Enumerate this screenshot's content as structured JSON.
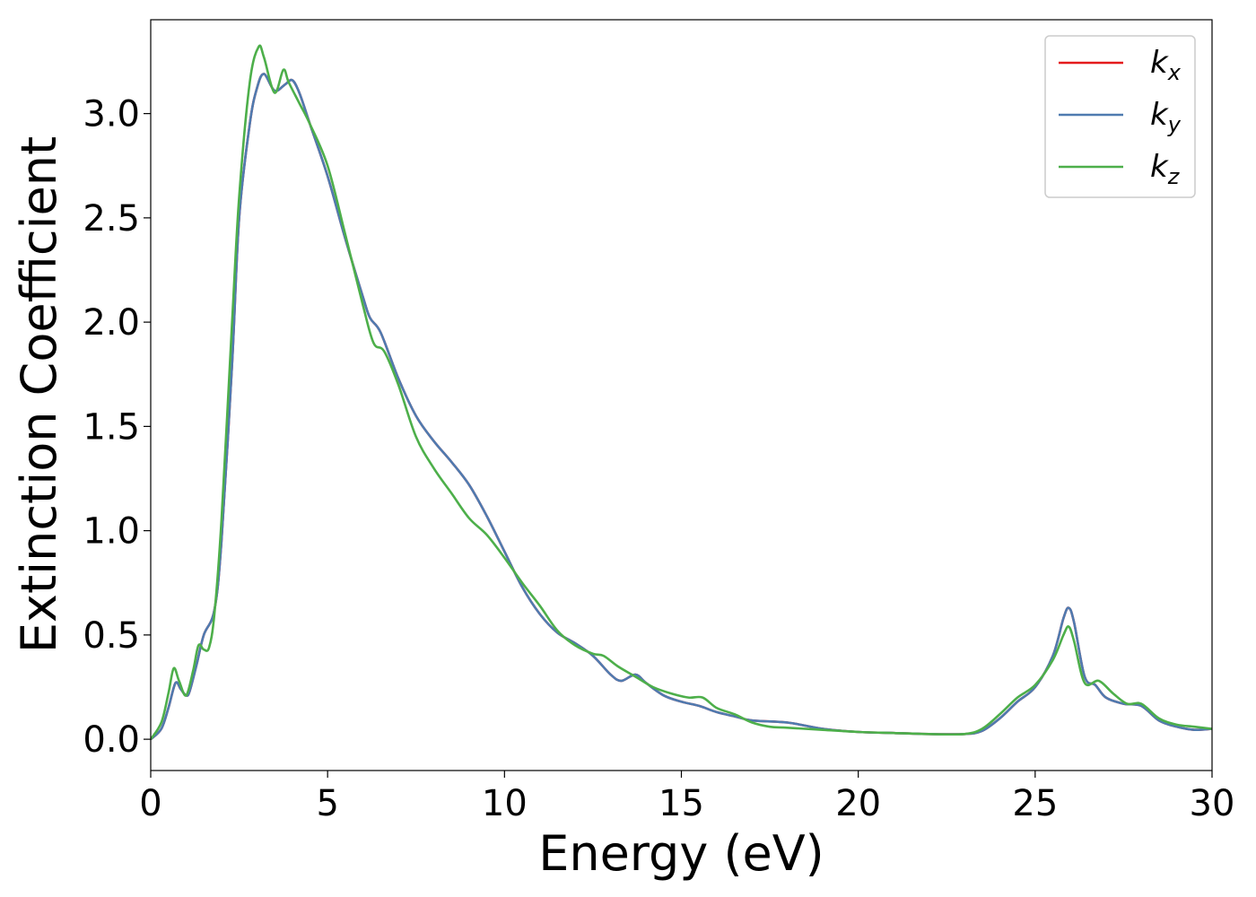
{
  "chart_data": {
    "type": "line",
    "title": "",
    "xlabel": "Energy (eV)",
    "ylabel": "Extinction Coefficient",
    "xlim": [
      0,
      30
    ],
    "ylim": [
      -0.15,
      3.45
    ],
    "xticks": [
      "0",
      "5",
      "10",
      "15",
      "20",
      "25",
      "30"
    ],
    "yticks": [
      "0.0",
      "0.5",
      "1.0",
      "1.5",
      "2.0",
      "2.5",
      "3.0"
    ],
    "grid": false,
    "legend_position": "top-right",
    "series": [
      {
        "name": "k",
        "sub": "x",
        "color": "#e41a1c",
        "points": [
          [
            0,
            0.0
          ],
          [
            0.3,
            0.05
          ],
          [
            0.5,
            0.15
          ],
          [
            0.7,
            0.27
          ],
          [
            0.85,
            0.24
          ],
          [
            1.0,
            0.21
          ],
          [
            1.1,
            0.23
          ],
          [
            1.3,
            0.36
          ],
          [
            1.5,
            0.5
          ],
          [
            1.8,
            0.62
          ],
          [
            2.0,
            0.95
          ],
          [
            2.3,
            1.8
          ],
          [
            2.5,
            2.5
          ],
          [
            2.8,
            2.95
          ],
          [
            3.0,
            3.12
          ],
          [
            3.2,
            3.19
          ],
          [
            3.5,
            3.11
          ],
          [
            3.8,
            3.14
          ],
          [
            4.0,
            3.16
          ],
          [
            4.2,
            3.1
          ],
          [
            4.5,
            2.95
          ],
          [
            5.0,
            2.7
          ],
          [
            5.5,
            2.4
          ],
          [
            6.0,
            2.12
          ],
          [
            6.2,
            2.02
          ],
          [
            6.5,
            1.95
          ],
          [
            7.0,
            1.73
          ],
          [
            7.5,
            1.55
          ],
          [
            8.0,
            1.43
          ],
          [
            8.5,
            1.33
          ],
          [
            9.0,
            1.22
          ],
          [
            9.5,
            1.07
          ],
          [
            10.0,
            0.9
          ],
          [
            10.5,
            0.73
          ],
          [
            11.0,
            0.6
          ],
          [
            11.5,
            0.51
          ],
          [
            12.0,
            0.46
          ],
          [
            12.5,
            0.4
          ],
          [
            13.0,
            0.31
          ],
          [
            13.3,
            0.28
          ],
          [
            13.7,
            0.31
          ],
          [
            14.0,
            0.27
          ],
          [
            14.5,
            0.21
          ],
          [
            15.0,
            0.18
          ],
          [
            15.5,
            0.16
          ],
          [
            16.0,
            0.13
          ],
          [
            16.5,
            0.11
          ],
          [
            17.0,
            0.09
          ],
          [
            18.0,
            0.08
          ],
          [
            19.0,
            0.05
          ],
          [
            20.0,
            0.035
          ],
          [
            21.0,
            0.03
          ],
          [
            22.0,
            0.025
          ],
          [
            23.0,
            0.025
          ],
          [
            23.5,
            0.04
          ],
          [
            24.0,
            0.1
          ],
          [
            24.5,
            0.18
          ],
          [
            25.0,
            0.25
          ],
          [
            25.5,
            0.4
          ],
          [
            25.8,
            0.58
          ],
          [
            25.95,
            0.63
          ],
          [
            26.1,
            0.56
          ],
          [
            26.4,
            0.3
          ],
          [
            26.7,
            0.26
          ],
          [
            27.0,
            0.2
          ],
          [
            27.5,
            0.17
          ],
          [
            28.0,
            0.16
          ],
          [
            28.5,
            0.09
          ],
          [
            29.0,
            0.06
          ],
          [
            29.5,
            0.045
          ],
          [
            30.0,
            0.05
          ]
        ]
      },
      {
        "name": "k",
        "sub": "y",
        "color": "#4f7bb0",
        "points": [
          [
            0,
            0.0
          ],
          [
            0.3,
            0.05
          ],
          [
            0.5,
            0.15
          ],
          [
            0.7,
            0.27
          ],
          [
            0.85,
            0.24
          ],
          [
            1.0,
            0.21
          ],
          [
            1.1,
            0.23
          ],
          [
            1.3,
            0.36
          ],
          [
            1.5,
            0.5
          ],
          [
            1.8,
            0.62
          ],
          [
            2.0,
            0.95
          ],
          [
            2.3,
            1.8
          ],
          [
            2.5,
            2.5
          ],
          [
            2.8,
            2.95
          ],
          [
            3.0,
            3.12
          ],
          [
            3.2,
            3.19
          ],
          [
            3.5,
            3.11
          ],
          [
            3.8,
            3.14
          ],
          [
            4.0,
            3.16
          ],
          [
            4.2,
            3.1
          ],
          [
            4.5,
            2.95
          ],
          [
            5.0,
            2.7
          ],
          [
            5.5,
            2.4
          ],
          [
            6.0,
            2.12
          ],
          [
            6.2,
            2.02
          ],
          [
            6.5,
            1.95
          ],
          [
            7.0,
            1.73
          ],
          [
            7.5,
            1.55
          ],
          [
            8.0,
            1.43
          ],
          [
            8.5,
            1.33
          ],
          [
            9.0,
            1.22
          ],
          [
            9.5,
            1.07
          ],
          [
            10.0,
            0.9
          ],
          [
            10.5,
            0.73
          ],
          [
            11.0,
            0.6
          ],
          [
            11.5,
            0.51
          ],
          [
            12.0,
            0.46
          ],
          [
            12.5,
            0.4
          ],
          [
            13.0,
            0.31
          ],
          [
            13.3,
            0.28
          ],
          [
            13.7,
            0.31
          ],
          [
            14.0,
            0.27
          ],
          [
            14.5,
            0.21
          ],
          [
            15.0,
            0.18
          ],
          [
            15.5,
            0.16
          ],
          [
            16.0,
            0.13
          ],
          [
            16.5,
            0.11
          ],
          [
            17.0,
            0.09
          ],
          [
            18.0,
            0.08
          ],
          [
            19.0,
            0.05
          ],
          [
            20.0,
            0.035
          ],
          [
            21.0,
            0.03
          ],
          [
            22.0,
            0.025
          ],
          [
            23.0,
            0.025
          ],
          [
            23.5,
            0.04
          ],
          [
            24.0,
            0.1
          ],
          [
            24.5,
            0.18
          ],
          [
            25.0,
            0.25
          ],
          [
            25.5,
            0.4
          ],
          [
            25.8,
            0.58
          ],
          [
            25.95,
            0.63
          ],
          [
            26.1,
            0.56
          ],
          [
            26.4,
            0.3
          ],
          [
            26.7,
            0.26
          ],
          [
            27.0,
            0.2
          ],
          [
            27.5,
            0.17
          ],
          [
            28.0,
            0.16
          ],
          [
            28.5,
            0.09
          ],
          [
            29.0,
            0.06
          ],
          [
            29.5,
            0.045
          ],
          [
            30.0,
            0.05
          ]
        ]
      },
      {
        "name": "k",
        "sub": "z",
        "color": "#4daf4a",
        "points": [
          [
            0,
            0.0
          ],
          [
            0.3,
            0.08
          ],
          [
            0.5,
            0.22
          ],
          [
            0.65,
            0.34
          ],
          [
            0.8,
            0.28
          ],
          [
            1.0,
            0.21
          ],
          [
            1.2,
            0.33
          ],
          [
            1.35,
            0.45
          ],
          [
            1.5,
            0.43
          ],
          [
            1.65,
            0.44
          ],
          [
            1.8,
            0.6
          ],
          [
            2.0,
            1.05
          ],
          [
            2.3,
            2.0
          ],
          [
            2.5,
            2.6
          ],
          [
            2.8,
            3.15
          ],
          [
            3.05,
            3.32
          ],
          [
            3.2,
            3.27
          ],
          [
            3.5,
            3.1
          ],
          [
            3.75,
            3.21
          ],
          [
            3.9,
            3.15
          ],
          [
            4.2,
            3.05
          ],
          [
            4.5,
            2.95
          ],
          [
            5.0,
            2.75
          ],
          [
            5.5,
            2.42
          ],
          [
            6.0,
            2.08
          ],
          [
            6.3,
            1.9
          ],
          [
            6.6,
            1.86
          ],
          [
            7.0,
            1.7
          ],
          [
            7.5,
            1.45
          ],
          [
            8.0,
            1.3
          ],
          [
            8.5,
            1.18
          ],
          [
            9.0,
            1.06
          ],
          [
            9.5,
            0.98
          ],
          [
            10.0,
            0.87
          ],
          [
            10.5,
            0.75
          ],
          [
            11.0,
            0.64
          ],
          [
            11.5,
            0.52
          ],
          [
            12.0,
            0.45
          ],
          [
            12.5,
            0.41
          ],
          [
            12.8,
            0.4
          ],
          [
            13.2,
            0.35
          ],
          [
            13.7,
            0.3
          ],
          [
            14.2,
            0.25
          ],
          [
            14.7,
            0.22
          ],
          [
            15.2,
            0.2
          ],
          [
            15.6,
            0.2
          ],
          [
            16.0,
            0.15
          ],
          [
            16.5,
            0.12
          ],
          [
            17.0,
            0.08
          ],
          [
            17.5,
            0.06
          ],
          [
            18.0,
            0.055
          ],
          [
            19.0,
            0.045
          ],
          [
            20.0,
            0.035
          ],
          [
            21.0,
            0.03
          ],
          [
            22.0,
            0.025
          ],
          [
            23.0,
            0.025
          ],
          [
            23.5,
            0.05
          ],
          [
            24.0,
            0.12
          ],
          [
            24.5,
            0.2
          ],
          [
            25.0,
            0.26
          ],
          [
            25.5,
            0.38
          ],
          [
            25.8,
            0.5
          ],
          [
            25.95,
            0.54
          ],
          [
            26.1,
            0.47
          ],
          [
            26.4,
            0.27
          ],
          [
            26.8,
            0.28
          ],
          [
            27.2,
            0.22
          ],
          [
            27.6,
            0.17
          ],
          [
            28.0,
            0.17
          ],
          [
            28.5,
            0.1
          ],
          [
            29.0,
            0.07
          ],
          [
            29.5,
            0.06
          ],
          [
            30.0,
            0.05
          ]
        ]
      }
    ]
  }
}
